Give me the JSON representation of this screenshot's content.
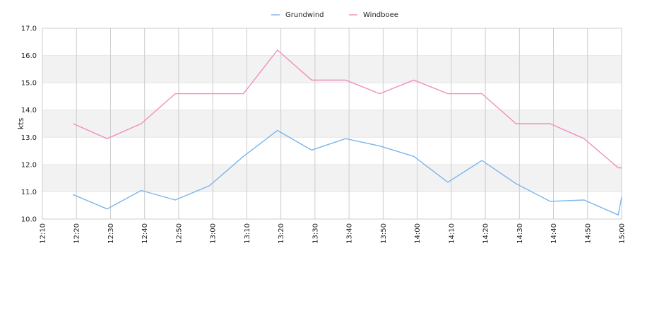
{
  "chart_data": {
    "type": "line",
    "title": "",
    "xlabel": "",
    "ylabel": "kts",
    "legend_position": "top-center",
    "grid": true,
    "ylim": [
      10.0,
      17.0
    ],
    "y_ticks": [
      "10.0",
      "11.0",
      "12.0",
      "13.0",
      "14.0",
      "15.0",
      "16.0",
      "17.0"
    ],
    "x_ticks": [
      "12:10",
      "12:20",
      "12:30",
      "12:40",
      "12:50",
      "13:00",
      "13:10",
      "13:20",
      "13:30",
      "13:40",
      "13:50",
      "14:00",
      "14:10",
      "14:20",
      "14:30",
      "14:40",
      "14:50",
      "15:00"
    ],
    "series": [
      {
        "name": "Grundwind",
        "color": "#7cb5ec",
        "points": [
          [
            "12:19",
            10.9
          ],
          [
            "12:29",
            10.37
          ],
          [
            "12:39",
            11.05
          ],
          [
            "12:49",
            10.7
          ],
          [
            "12:59",
            11.22
          ],
          [
            "13:09",
            12.3
          ],
          [
            "13:19",
            13.25
          ],
          [
            "13:29",
            12.53
          ],
          [
            "13:39",
            12.95
          ],
          [
            "13:49",
            12.68
          ],
          [
            "13:59",
            12.3
          ],
          [
            "14:09",
            11.35
          ],
          [
            "14:19",
            12.15
          ],
          [
            "14:29",
            11.3
          ],
          [
            "14:39",
            10.65
          ],
          [
            "14:49",
            10.7
          ],
          [
            "14:59",
            10.15
          ],
          [
            "15:00",
            10.8
          ]
        ]
      },
      {
        "name": "Windboee",
        "color": "#f08fbf",
        "points": [
          [
            "12:19",
            13.5
          ],
          [
            "12:29",
            12.95
          ],
          [
            "12:39",
            13.5
          ],
          [
            "12:49",
            14.6
          ],
          [
            "12:59",
            14.6
          ],
          [
            "13:09",
            14.6
          ],
          [
            "13:19",
            16.2
          ],
          [
            "13:29",
            15.1
          ],
          [
            "13:39",
            15.1
          ],
          [
            "13:49",
            14.6
          ],
          [
            "13:59",
            15.1
          ],
          [
            "14:09",
            14.6
          ],
          [
            "14:19",
            14.6
          ],
          [
            "14:29",
            13.5
          ],
          [
            "14:39",
            13.5
          ],
          [
            "14:49",
            12.95
          ],
          [
            "14:59",
            11.88
          ],
          [
            "15:00",
            11.88
          ]
        ]
      }
    ]
  }
}
